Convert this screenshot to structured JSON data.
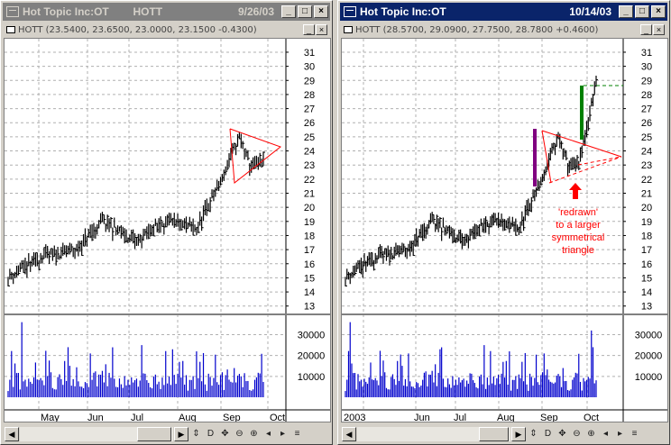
{
  "left_window": {
    "title": "Hot Topic Inc:OT        HOTT",
    "date": "9/26/03",
    "quote_line": "HOTT (23.5400, 23.6500, 23.0000, 23.1500 -0.4300)",
    "price_ticks": [
      "31",
      "30",
      "29",
      "28",
      "27",
      "26",
      "25",
      "24",
      "23",
      "22",
      "21",
      "20",
      "19",
      "18",
      "17",
      "16",
      "15",
      "14",
      "13"
    ],
    "volume_ticks": [
      "30000",
      "20000",
      "10000"
    ],
    "x_labels": [
      "May",
      "Jun",
      "Jul",
      "Aug",
      "Sep",
      "Oct"
    ]
  },
  "right_window": {
    "title": "Hot Topic Inc:OT",
    "date": "10/14/03",
    "quote_line": "HOTT (28.5700, 29.0900, 27.7500, 28.7800 +0.4600)",
    "price_ticks": [
      "31",
      "30",
      "29",
      "28",
      "27",
      "26",
      "25",
      "24",
      "23",
      "22",
      "21",
      "20",
      "19",
      "18",
      "17",
      "16",
      "15",
      "14",
      "13"
    ],
    "volume_ticks": [
      "30000",
      "20000",
      "10000"
    ],
    "x_labels": [
      "2003",
      "Jun",
      "Jul",
      "Aug",
      "Sep",
      "Oct"
    ],
    "annotation": [
      "'redrawn'",
      "to a larger",
      "symmetrical",
      "triangle"
    ]
  },
  "window_buttons": {
    "minimize": "_",
    "maximize": "□",
    "close": "×"
  },
  "toolbar_icons": [
    "scroll-arrows-icon",
    "d-icon",
    "move-icon",
    "zoom-out-icon",
    "zoom-in-icon",
    "prev-icon",
    "next-icon",
    "menu-icon"
  ],
  "toolbar_labels": {
    "d": "D"
  },
  "colors": {
    "bars": "#000000",
    "volume": "#0000cc",
    "triangle": "#ff0000",
    "flag_purple": "#800080",
    "flag_green": "#008000",
    "grid": "#a0a0a0"
  }
}
